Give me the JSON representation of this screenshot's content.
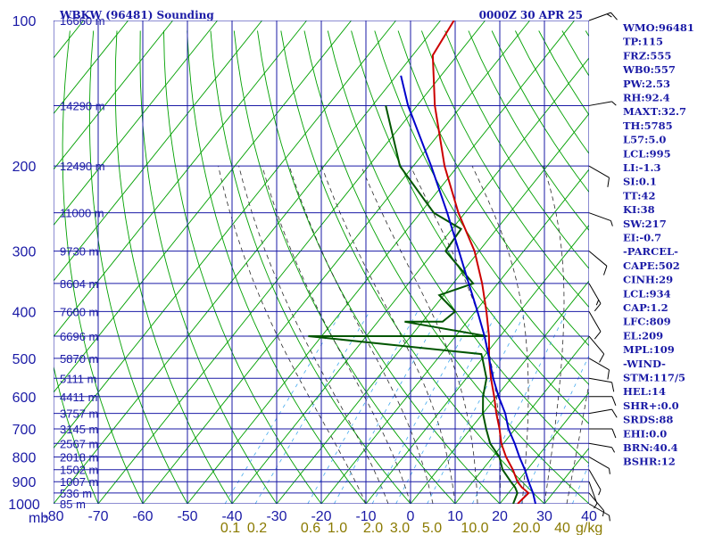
{
  "title_left": "WBKW (96481) Sounding",
  "title_right": "0000Z 30 APR 25",
  "pressure_unit": "mb",
  "mixing_ratio_unit": "g/kg",
  "colors": {
    "frame": "#1a1aa6",
    "dry_adiabat": "#00a000",
    "moist_adiabat": "#2a2a2a",
    "mixing_ratio": "#44aaee",
    "temperature": "#cc0000",
    "dewpoint": "#005500",
    "parcel": "#0000cc",
    "wind": "#000000"
  },
  "index_panel": [
    "WMO:96481",
    "TP:115",
    "FRZ:555",
    "WB0:557",
    "PW:2.53",
    "RH:92.4",
    "MAXT:32.7",
    "TH:5785",
    "L57:5.0",
    "LCL:995",
    "LI:-1.3",
    "SI:0.1",
    "TT:42",
    "KI:38",
    "SW:217",
    "EI:-0.7",
    "-PARCEL-",
    "CAPE:502",
    "CINH:29",
    "LCL:934",
    "CAP:1.2",
    "LFC:809",
    "EL:209",
    "MPL:109",
    "-WIND-",
    "STM:117/5",
    "HEL:14",
    "SHR+:0.0",
    "SRDS:88",
    "EHI:0.0",
    "BRN:40.4",
    "BSHR:12"
  ],
  "chart_data": {
    "type": "line",
    "title": "WBKW (96481) Sounding",
    "subtitle": "0000Z 30 APR 25",
    "x_axis": {
      "scale": "skewed temperature (°C)",
      "range": [
        -80,
        40
      ],
      "ticks": [
        "-80",
        "-70",
        "-60",
        "-50",
        "-40",
        "-30",
        "-20",
        "-10",
        "0",
        "10",
        "20",
        "30",
        "40"
      ]
    },
    "y_axis": {
      "label": "mb",
      "scale": "log",
      "range": [
        1000,
        100
      ],
      "ticks": [
        100,
        200,
        300,
        400,
        500,
        600,
        700,
        800,
        900,
        1000
      ]
    },
    "height_labels": [
      {
        "p": 100,
        "label": "16660 m"
      },
      {
        "p": 150,
        "label": "14290 m"
      },
      {
        "p": 200,
        "label": "12490 m"
      },
      {
        "p": 250,
        "label": "11000 m"
      },
      {
        "p": 300,
        "label": "9730 m"
      },
      {
        "p": 350,
        "label": "8604 m"
      },
      {
        "p": 400,
        "label": "7600 m"
      },
      {
        "p": 450,
        "label": "6696 m"
      },
      {
        "p": 500,
        "label": "5870 m"
      },
      {
        "p": 550,
        "label": "5111 m"
      },
      {
        "p": 600,
        "label": "4411 m"
      },
      {
        "p": 650,
        "label": "3757 m"
      },
      {
        "p": 700,
        "label": "3145 m"
      },
      {
        "p": 750,
        "label": "2567 m"
      },
      {
        "p": 800,
        "label": "2018 m"
      },
      {
        "p": 850,
        "label": "1502 m"
      },
      {
        "p": 900,
        "label": "1007 m"
      },
      {
        "p": 950,
        "label": "536 m"
      },
      {
        "p": 1000,
        "label": "85 m"
      }
    ],
    "mixing_ratio_labels": [
      "0.1",
      "0.2",
      "0.6",
      "1.0",
      "2.0",
      "3.0",
      "5.0",
      "10.0",
      "20.0",
      "40",
      "g/kg"
    ],
    "grid": true,
    "series": [
      {
        "role": "temperature",
        "points": [
          [
            1000,
            24.0
          ],
          [
            950,
            24.5
          ],
          [
            925,
            22.0
          ],
          [
            900,
            20.0
          ],
          [
            850,
            16.8
          ],
          [
            800,
            13.0
          ],
          [
            750,
            9.5
          ],
          [
            700,
            6.5
          ],
          [
            650,
            3.0
          ],
          [
            600,
            -0.5
          ],
          [
            550,
            -4.5
          ],
          [
            500,
            -8.5
          ],
          [
            450,
            -12.5
          ],
          [
            400,
            -17.5
          ],
          [
            350,
            -23.5
          ],
          [
            300,
            -31.0
          ],
          [
            250,
            -41.5
          ],
          [
            200,
            -53.0
          ],
          [
            150,
            -66.0
          ],
          [
            118,
            -75.5
          ],
          [
            100,
            -77.0
          ]
        ]
      },
      {
        "role": "dewpoint",
        "points": [
          [
            1000,
            23.0
          ],
          [
            950,
            22.0
          ],
          [
            925,
            20.5
          ],
          [
            900,
            18.5
          ],
          [
            850,
            14.5
          ],
          [
            800,
            11.5
          ],
          [
            750,
            7.0
          ],
          [
            700,
            3.5
          ],
          [
            650,
            0.0
          ],
          [
            600,
            -3.0
          ],
          [
            550,
            -5.5
          ],
          [
            500,
            -10.0
          ],
          [
            490,
            -11.0
          ],
          [
            450,
            -53.0
          ],
          [
            450,
            -13.0
          ],
          [
            420,
            -34.0
          ],
          [
            420,
            -25.5
          ],
          [
            400,
            -24.5
          ],
          [
            370,
            -31.0
          ],
          [
            350,
            -25.5
          ],
          [
            300,
            -37.5
          ],
          [
            270,
            -38.0
          ],
          [
            250,
            -47.0
          ],
          [
            200,
            -63.0
          ],
          [
            150,
            -77.0
          ]
        ]
      },
      {
        "role": "parcel",
        "points": [
          [
            1000,
            28.0
          ],
          [
            950,
            25.5
          ],
          [
            900,
            22.5
          ],
          [
            850,
            19.5
          ],
          [
            800,
            16.0
          ],
          [
            750,
            12.5
          ],
          [
            700,
            8.5
          ],
          [
            650,
            5.0
          ],
          [
            600,
            0.5
          ],
          [
            550,
            -4.0
          ],
          [
            500,
            -8.5
          ],
          [
            450,
            -13.5
          ],
          [
            400,
            -19.5
          ],
          [
            350,
            -26.5
          ],
          [
            300,
            -34.5
          ],
          [
            250,
            -44.0
          ],
          [
            200,
            -56.0
          ],
          [
            150,
            -72.0
          ],
          [
            130,
            -79.0
          ]
        ]
      }
    ],
    "wind_barbs": [
      {
        "p": 1000,
        "dir": 120,
        "spd": 5
      },
      {
        "p": 950,
        "dir": 140,
        "spd": 8
      },
      {
        "p": 900,
        "dir": 160,
        "spd": 5
      },
      {
        "p": 850,
        "dir": 150,
        "spd": 5
      },
      {
        "p": 800,
        "dir": 120,
        "spd": 5
      },
      {
        "p": 750,
        "dir": 100,
        "spd": 5
      },
      {
        "p": 700,
        "dir": 90,
        "spd": 10
      },
      {
        "p": 650,
        "dir": 80,
        "spd": 10
      },
      {
        "p": 600,
        "dir": 90,
        "spd": 10
      },
      {
        "p": 550,
        "dir": 100,
        "spd": 10
      },
      {
        "p": 500,
        "dir": 120,
        "spd": 10
      },
      {
        "p": 450,
        "dir": 140,
        "spd": 10
      },
      {
        "p": 400,
        "dir": 150,
        "spd": 10
      },
      {
        "p": 350,
        "dir": 150,
        "spd": 15
      },
      {
        "p": 300,
        "dir": 130,
        "spd": 10
      },
      {
        "p": 250,
        "dir": 110,
        "spd": 5
      },
      {
        "p": 200,
        "dir": 120,
        "spd": 10
      },
      {
        "p": 150,
        "dir": 80,
        "spd": 5
      },
      {
        "p": 100,
        "dir": 70,
        "spd": 15
      }
    ]
  }
}
